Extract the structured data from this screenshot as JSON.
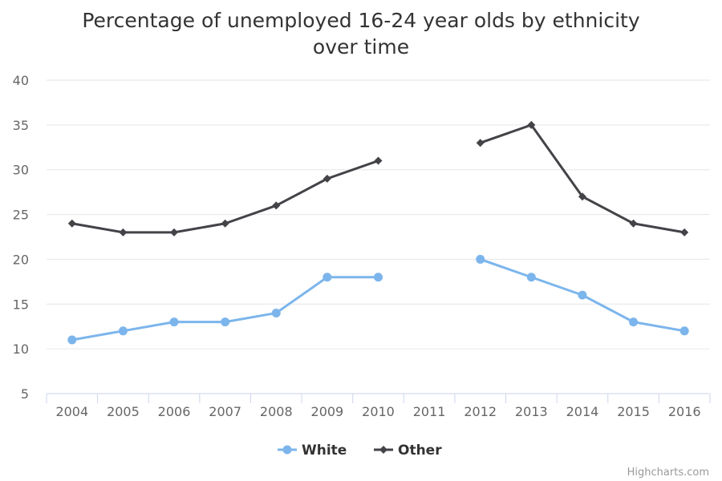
{
  "chart_data": {
    "type": "line",
    "title": "Percentage of unemployed 16-24 year olds by ethnicity over time",
    "title_lines": [
      "Percentage of unemployed 16-24 year olds by ethnicity",
      "over time"
    ],
    "categories": [
      "2004",
      "2005",
      "2006",
      "2007",
      "2008",
      "2009",
      "2010",
      "2011",
      "2012",
      "2013",
      "2014",
      "2015",
      "2016"
    ],
    "ylim": [
      5,
      40
    ],
    "yticks": [
      5,
      10,
      15,
      20,
      25,
      30,
      35,
      40
    ],
    "grid": true,
    "legend_position": "bottom-center",
    "series": [
      {
        "name": "White",
        "color": "#7cb5ec",
        "marker": "circle",
        "values": [
          11,
          12,
          13,
          13,
          14,
          18,
          18,
          null,
          20,
          18,
          16,
          13,
          12
        ]
      },
      {
        "name": "Other",
        "color": "#434348",
        "marker": "diamond",
        "values": [
          24,
          23,
          23,
          24,
          26,
          29,
          31,
          null,
          33,
          35,
          27,
          24,
          23
        ]
      }
    ]
  },
  "credits": "Highcharts.com"
}
